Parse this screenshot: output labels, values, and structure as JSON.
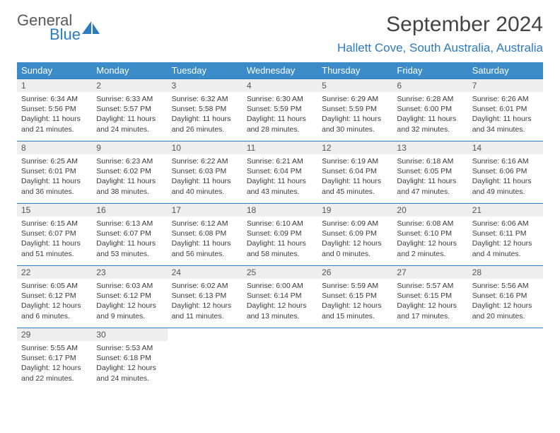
{
  "brand": {
    "line1": "General",
    "line2": "Blue"
  },
  "title": "September 2024",
  "location": "Hallett Cove, South Australia, Australia",
  "colors": {
    "header_bg": "#3b8bc8",
    "header_fg": "#ffffff",
    "accent": "#2a7bbf",
    "daynum_bg": "#eeeeee",
    "text": "#3a3a3a"
  },
  "weekdays": [
    "Sunday",
    "Monday",
    "Tuesday",
    "Wednesday",
    "Thursday",
    "Friday",
    "Saturday"
  ],
  "days": [
    {
      "n": "1",
      "sunrise": "Sunrise: 6:34 AM",
      "sunset": "Sunset: 5:56 PM",
      "day1": "Daylight: 11 hours",
      "day2": "and 21 minutes."
    },
    {
      "n": "2",
      "sunrise": "Sunrise: 6:33 AM",
      "sunset": "Sunset: 5:57 PM",
      "day1": "Daylight: 11 hours",
      "day2": "and 24 minutes."
    },
    {
      "n": "3",
      "sunrise": "Sunrise: 6:32 AM",
      "sunset": "Sunset: 5:58 PM",
      "day1": "Daylight: 11 hours",
      "day2": "and 26 minutes."
    },
    {
      "n": "4",
      "sunrise": "Sunrise: 6:30 AM",
      "sunset": "Sunset: 5:59 PM",
      "day1": "Daylight: 11 hours",
      "day2": "and 28 minutes."
    },
    {
      "n": "5",
      "sunrise": "Sunrise: 6:29 AM",
      "sunset": "Sunset: 5:59 PM",
      "day1": "Daylight: 11 hours",
      "day2": "and 30 minutes."
    },
    {
      "n": "6",
      "sunrise": "Sunrise: 6:28 AM",
      "sunset": "Sunset: 6:00 PM",
      "day1": "Daylight: 11 hours",
      "day2": "and 32 minutes."
    },
    {
      "n": "7",
      "sunrise": "Sunrise: 6:26 AM",
      "sunset": "Sunset: 6:01 PM",
      "day1": "Daylight: 11 hours",
      "day2": "and 34 minutes."
    },
    {
      "n": "8",
      "sunrise": "Sunrise: 6:25 AM",
      "sunset": "Sunset: 6:01 PM",
      "day1": "Daylight: 11 hours",
      "day2": "and 36 minutes."
    },
    {
      "n": "9",
      "sunrise": "Sunrise: 6:23 AM",
      "sunset": "Sunset: 6:02 PM",
      "day1": "Daylight: 11 hours",
      "day2": "and 38 minutes."
    },
    {
      "n": "10",
      "sunrise": "Sunrise: 6:22 AM",
      "sunset": "Sunset: 6:03 PM",
      "day1": "Daylight: 11 hours",
      "day2": "and 40 minutes."
    },
    {
      "n": "11",
      "sunrise": "Sunrise: 6:21 AM",
      "sunset": "Sunset: 6:04 PM",
      "day1": "Daylight: 11 hours",
      "day2": "and 43 minutes."
    },
    {
      "n": "12",
      "sunrise": "Sunrise: 6:19 AM",
      "sunset": "Sunset: 6:04 PM",
      "day1": "Daylight: 11 hours",
      "day2": "and 45 minutes."
    },
    {
      "n": "13",
      "sunrise": "Sunrise: 6:18 AM",
      "sunset": "Sunset: 6:05 PM",
      "day1": "Daylight: 11 hours",
      "day2": "and 47 minutes."
    },
    {
      "n": "14",
      "sunrise": "Sunrise: 6:16 AM",
      "sunset": "Sunset: 6:06 PM",
      "day1": "Daylight: 11 hours",
      "day2": "and 49 minutes."
    },
    {
      "n": "15",
      "sunrise": "Sunrise: 6:15 AM",
      "sunset": "Sunset: 6:07 PM",
      "day1": "Daylight: 11 hours",
      "day2": "and 51 minutes."
    },
    {
      "n": "16",
      "sunrise": "Sunrise: 6:13 AM",
      "sunset": "Sunset: 6:07 PM",
      "day1": "Daylight: 11 hours",
      "day2": "and 53 minutes."
    },
    {
      "n": "17",
      "sunrise": "Sunrise: 6:12 AM",
      "sunset": "Sunset: 6:08 PM",
      "day1": "Daylight: 11 hours",
      "day2": "and 56 minutes."
    },
    {
      "n": "18",
      "sunrise": "Sunrise: 6:10 AM",
      "sunset": "Sunset: 6:09 PM",
      "day1": "Daylight: 11 hours",
      "day2": "and 58 minutes."
    },
    {
      "n": "19",
      "sunrise": "Sunrise: 6:09 AM",
      "sunset": "Sunset: 6:09 PM",
      "day1": "Daylight: 12 hours",
      "day2": "and 0 minutes."
    },
    {
      "n": "20",
      "sunrise": "Sunrise: 6:08 AM",
      "sunset": "Sunset: 6:10 PM",
      "day1": "Daylight: 12 hours",
      "day2": "and 2 minutes."
    },
    {
      "n": "21",
      "sunrise": "Sunrise: 6:06 AM",
      "sunset": "Sunset: 6:11 PM",
      "day1": "Daylight: 12 hours",
      "day2": "and 4 minutes."
    },
    {
      "n": "22",
      "sunrise": "Sunrise: 6:05 AM",
      "sunset": "Sunset: 6:12 PM",
      "day1": "Daylight: 12 hours",
      "day2": "and 6 minutes."
    },
    {
      "n": "23",
      "sunrise": "Sunrise: 6:03 AM",
      "sunset": "Sunset: 6:12 PM",
      "day1": "Daylight: 12 hours",
      "day2": "and 9 minutes."
    },
    {
      "n": "24",
      "sunrise": "Sunrise: 6:02 AM",
      "sunset": "Sunset: 6:13 PM",
      "day1": "Daylight: 12 hours",
      "day2": "and 11 minutes."
    },
    {
      "n": "25",
      "sunrise": "Sunrise: 6:00 AM",
      "sunset": "Sunset: 6:14 PM",
      "day1": "Daylight: 12 hours",
      "day2": "and 13 minutes."
    },
    {
      "n": "26",
      "sunrise": "Sunrise: 5:59 AM",
      "sunset": "Sunset: 6:15 PM",
      "day1": "Daylight: 12 hours",
      "day2": "and 15 minutes."
    },
    {
      "n": "27",
      "sunrise": "Sunrise: 5:57 AM",
      "sunset": "Sunset: 6:15 PM",
      "day1": "Daylight: 12 hours",
      "day2": "and 17 minutes."
    },
    {
      "n": "28",
      "sunrise": "Sunrise: 5:56 AM",
      "sunset": "Sunset: 6:16 PM",
      "day1": "Daylight: 12 hours",
      "day2": "and 20 minutes."
    },
    {
      "n": "29",
      "sunrise": "Sunrise: 5:55 AM",
      "sunset": "Sunset: 6:17 PM",
      "day1": "Daylight: 12 hours",
      "day2": "and 22 minutes."
    },
    {
      "n": "30",
      "sunrise": "Sunrise: 5:53 AM",
      "sunset": "Sunset: 6:18 PM",
      "day1": "Daylight: 12 hours",
      "day2": "and 24 minutes."
    }
  ]
}
